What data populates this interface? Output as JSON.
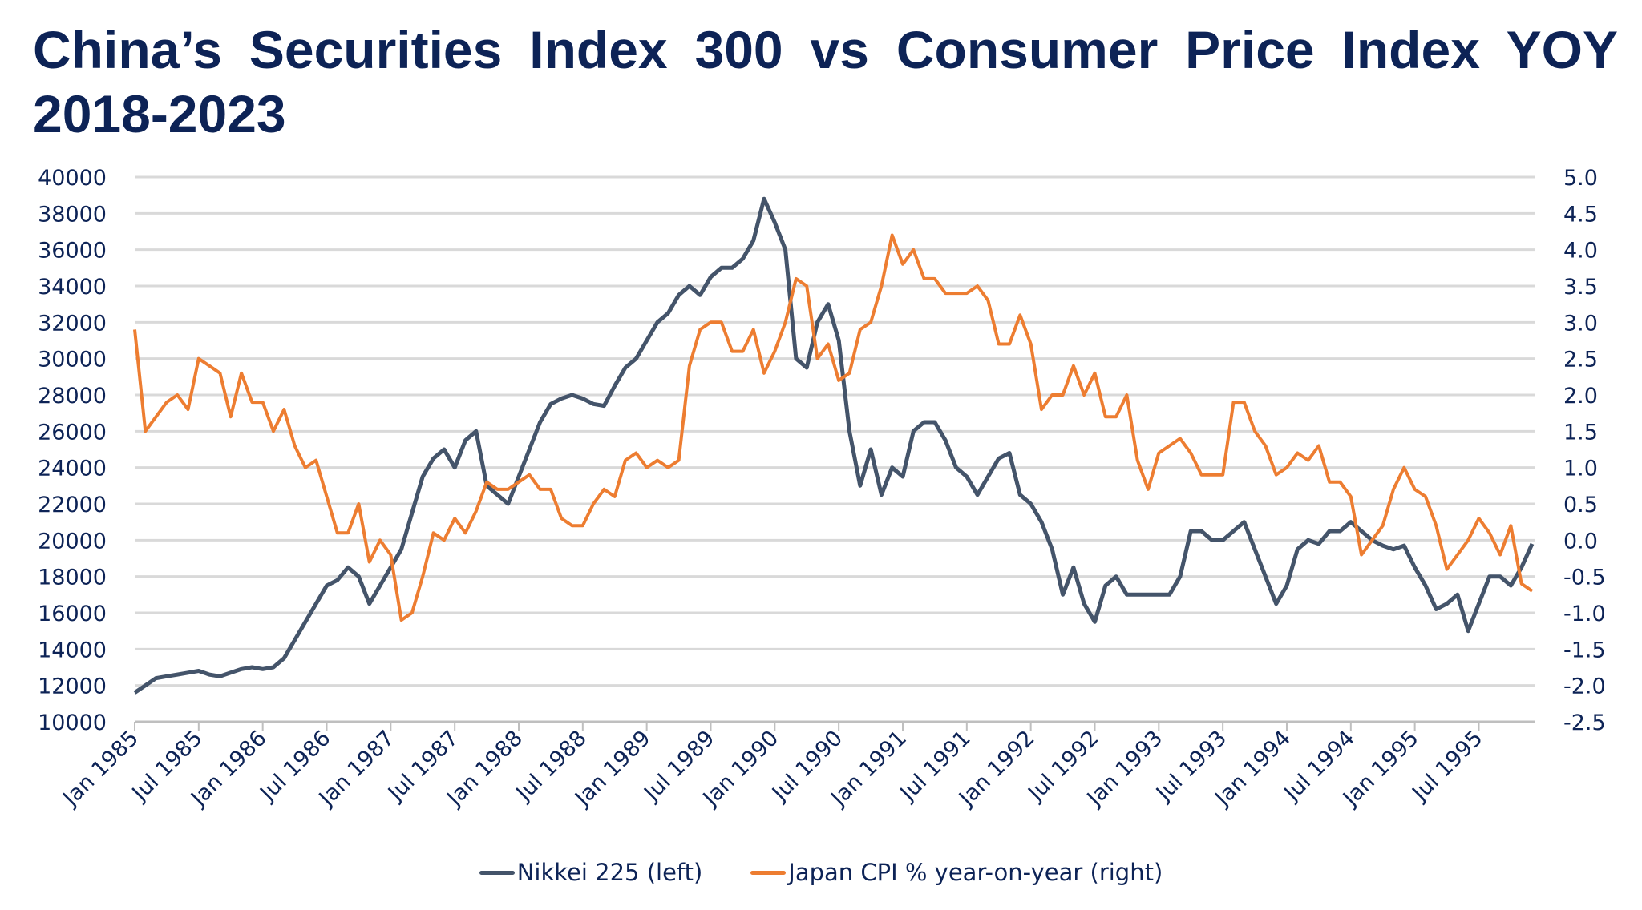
{
  "chart_data": {
    "type": "line",
    "title": "China’s Securities Index 300 vs Consumer Price Index YOY 2018-2023",
    "x_start": "Jan 1985",
    "x_end": "Dec 1995",
    "x_tick_labels": [
      "Jan 1985",
      "Jul 1985",
      "Jan 1986",
      "Jul 1986",
      "Jan 1987",
      "Jul 1987",
      "Jan 1988",
      "Jul 1988",
      "Jan 1989",
      "Jul 1989",
      "Jan 1990",
      "Jul 1990",
      "Jan 1991",
      "Jul 1991",
      "Jan 1992",
      "Jul 1992",
      "Jan 1993",
      "Jul 1993",
      "Jan 1994",
      "Jul 1994",
      "Jan 1995",
      "Jul 1995"
    ],
    "y_left": {
      "range": [
        10000,
        40000
      ],
      "ticks": [
        "10000",
        "12000",
        "14000",
        "16000",
        "18000",
        "20000",
        "22000",
        "24000",
        "26000",
        "28000",
        "30000",
        "32000",
        "34000",
        "36000",
        "38000",
        "40000"
      ]
    },
    "y_right": {
      "range": [
        -2.5,
        5.0
      ],
      "ticks": [
        "-2.5",
        "-2.0",
        "-1.5",
        "-1.0",
        "-0.5",
        "0.0",
        "0.5",
        "1.0",
        "1.5",
        "2.0",
        "2.5",
        "3.0",
        "3.5",
        "4.0",
        "4.5",
        "5.0"
      ]
    },
    "grid": true,
    "legend_position": "bottom",
    "series": [
      {
        "name": "Nikkei 225 (left)",
        "axis": "left",
        "color": "#44546a",
        "frequency": "monthly",
        "values": [
          11600,
          12000,
          12400,
          12500,
          12600,
          12700,
          12800,
          12600,
          12500,
          12700,
          12900,
          13000,
          12900,
          13000,
          13500,
          14500,
          15500,
          16500,
          17500,
          17800,
          18500,
          18000,
          16500,
          17500,
          18500,
          19500,
          21500,
          23500,
          24500,
          25000,
          24000,
          25500,
          26000,
          23000,
          22500,
          22000,
          23500,
          25000,
          26500,
          27500,
          27800,
          28000,
          27800,
          27500,
          27400,
          28500,
          29500,
          30000,
          31000,
          32000,
          32500,
          33500,
          34000,
          33500,
          34500,
          35000,
          35000,
          35500,
          36500,
          38800,
          37500,
          36000,
          30000,
          29500,
          32000,
          33000,
          31000,
          26000,
          23000,
          25000,
          22500,
          24000,
          23500,
          26000,
          26500,
          26500,
          25500,
          24000,
          23500,
          22500,
          23500,
          24500,
          24800,
          22500,
          22000,
          21000,
          19500,
          17000,
          18500,
          16500,
          15500,
          17500,
          18000,
          17000,
          17000,
          17000,
          17000,
          17000,
          18000,
          20500,
          20500,
          20000,
          20000,
          20500,
          21000,
          19500,
          18000,
          16500,
          17500,
          19500,
          20000,
          19800,
          20500,
          20500,
          21000,
          20500,
          20000,
          19700,
          19500,
          19700,
          18500,
          17500,
          16200,
          16500,
          17000,
          15000,
          16500,
          18000,
          18000,
          17500,
          18500,
          19800
        ]
      },
      {
        "name": "Japan CPI % year-on-year (right)",
        "axis": "right",
        "color": "#ed7d31",
        "frequency": "monthly",
        "values": [
          2.9,
          1.5,
          1.7,
          1.9,
          2.0,
          1.8,
          2.5,
          2.4,
          2.3,
          1.7,
          2.3,
          1.9,
          1.9,
          1.5,
          1.8,
          1.3,
          1.0,
          1.1,
          0.6,
          0.1,
          0.1,
          0.5,
          -0.3,
          0.0,
          -0.2,
          -1.1,
          -1.0,
          -0.5,
          0.1,
          0.0,
          0.3,
          0.1,
          0.4,
          0.8,
          0.7,
          0.7,
          0.8,
          0.9,
          0.7,
          0.7,
          0.3,
          0.2,
          0.2,
          0.5,
          0.7,
          0.6,
          1.1,
          1.2,
          1.0,
          1.1,
          1.0,
          1.1,
          2.4,
          2.9,
          3.0,
          3.0,
          2.6,
          2.6,
          2.9,
          2.3,
          2.6,
          3.0,
          3.6,
          3.5,
          2.5,
          2.7,
          2.2,
          2.3,
          2.9,
          3.0,
          3.5,
          4.2,
          3.8,
          4.0,
          3.6,
          3.6,
          3.4,
          3.4,
          3.4,
          3.5,
          3.3,
          2.7,
          2.7,
          3.1,
          2.7,
          1.8,
          2.0,
          2.0,
          2.4,
          2.0,
          2.3,
          1.7,
          1.7,
          2.0,
          1.1,
          0.7,
          1.2,
          1.3,
          1.4,
          1.2,
          0.9,
          0.9,
          0.9,
          1.9,
          1.9,
          1.5,
          1.3,
          0.9,
          1.0,
          1.2,
          1.1,
          1.3,
          0.8,
          0.8,
          0.6,
          -0.2,
          0.0,
          0.2,
          0.7,
          1.0,
          0.7,
          0.6,
          0.2,
          -0.4,
          -0.2,
          0.0,
          0.3,
          0.1,
          -0.2,
          0.2,
          -0.6,
          -0.7
        ]
      }
    ]
  }
}
